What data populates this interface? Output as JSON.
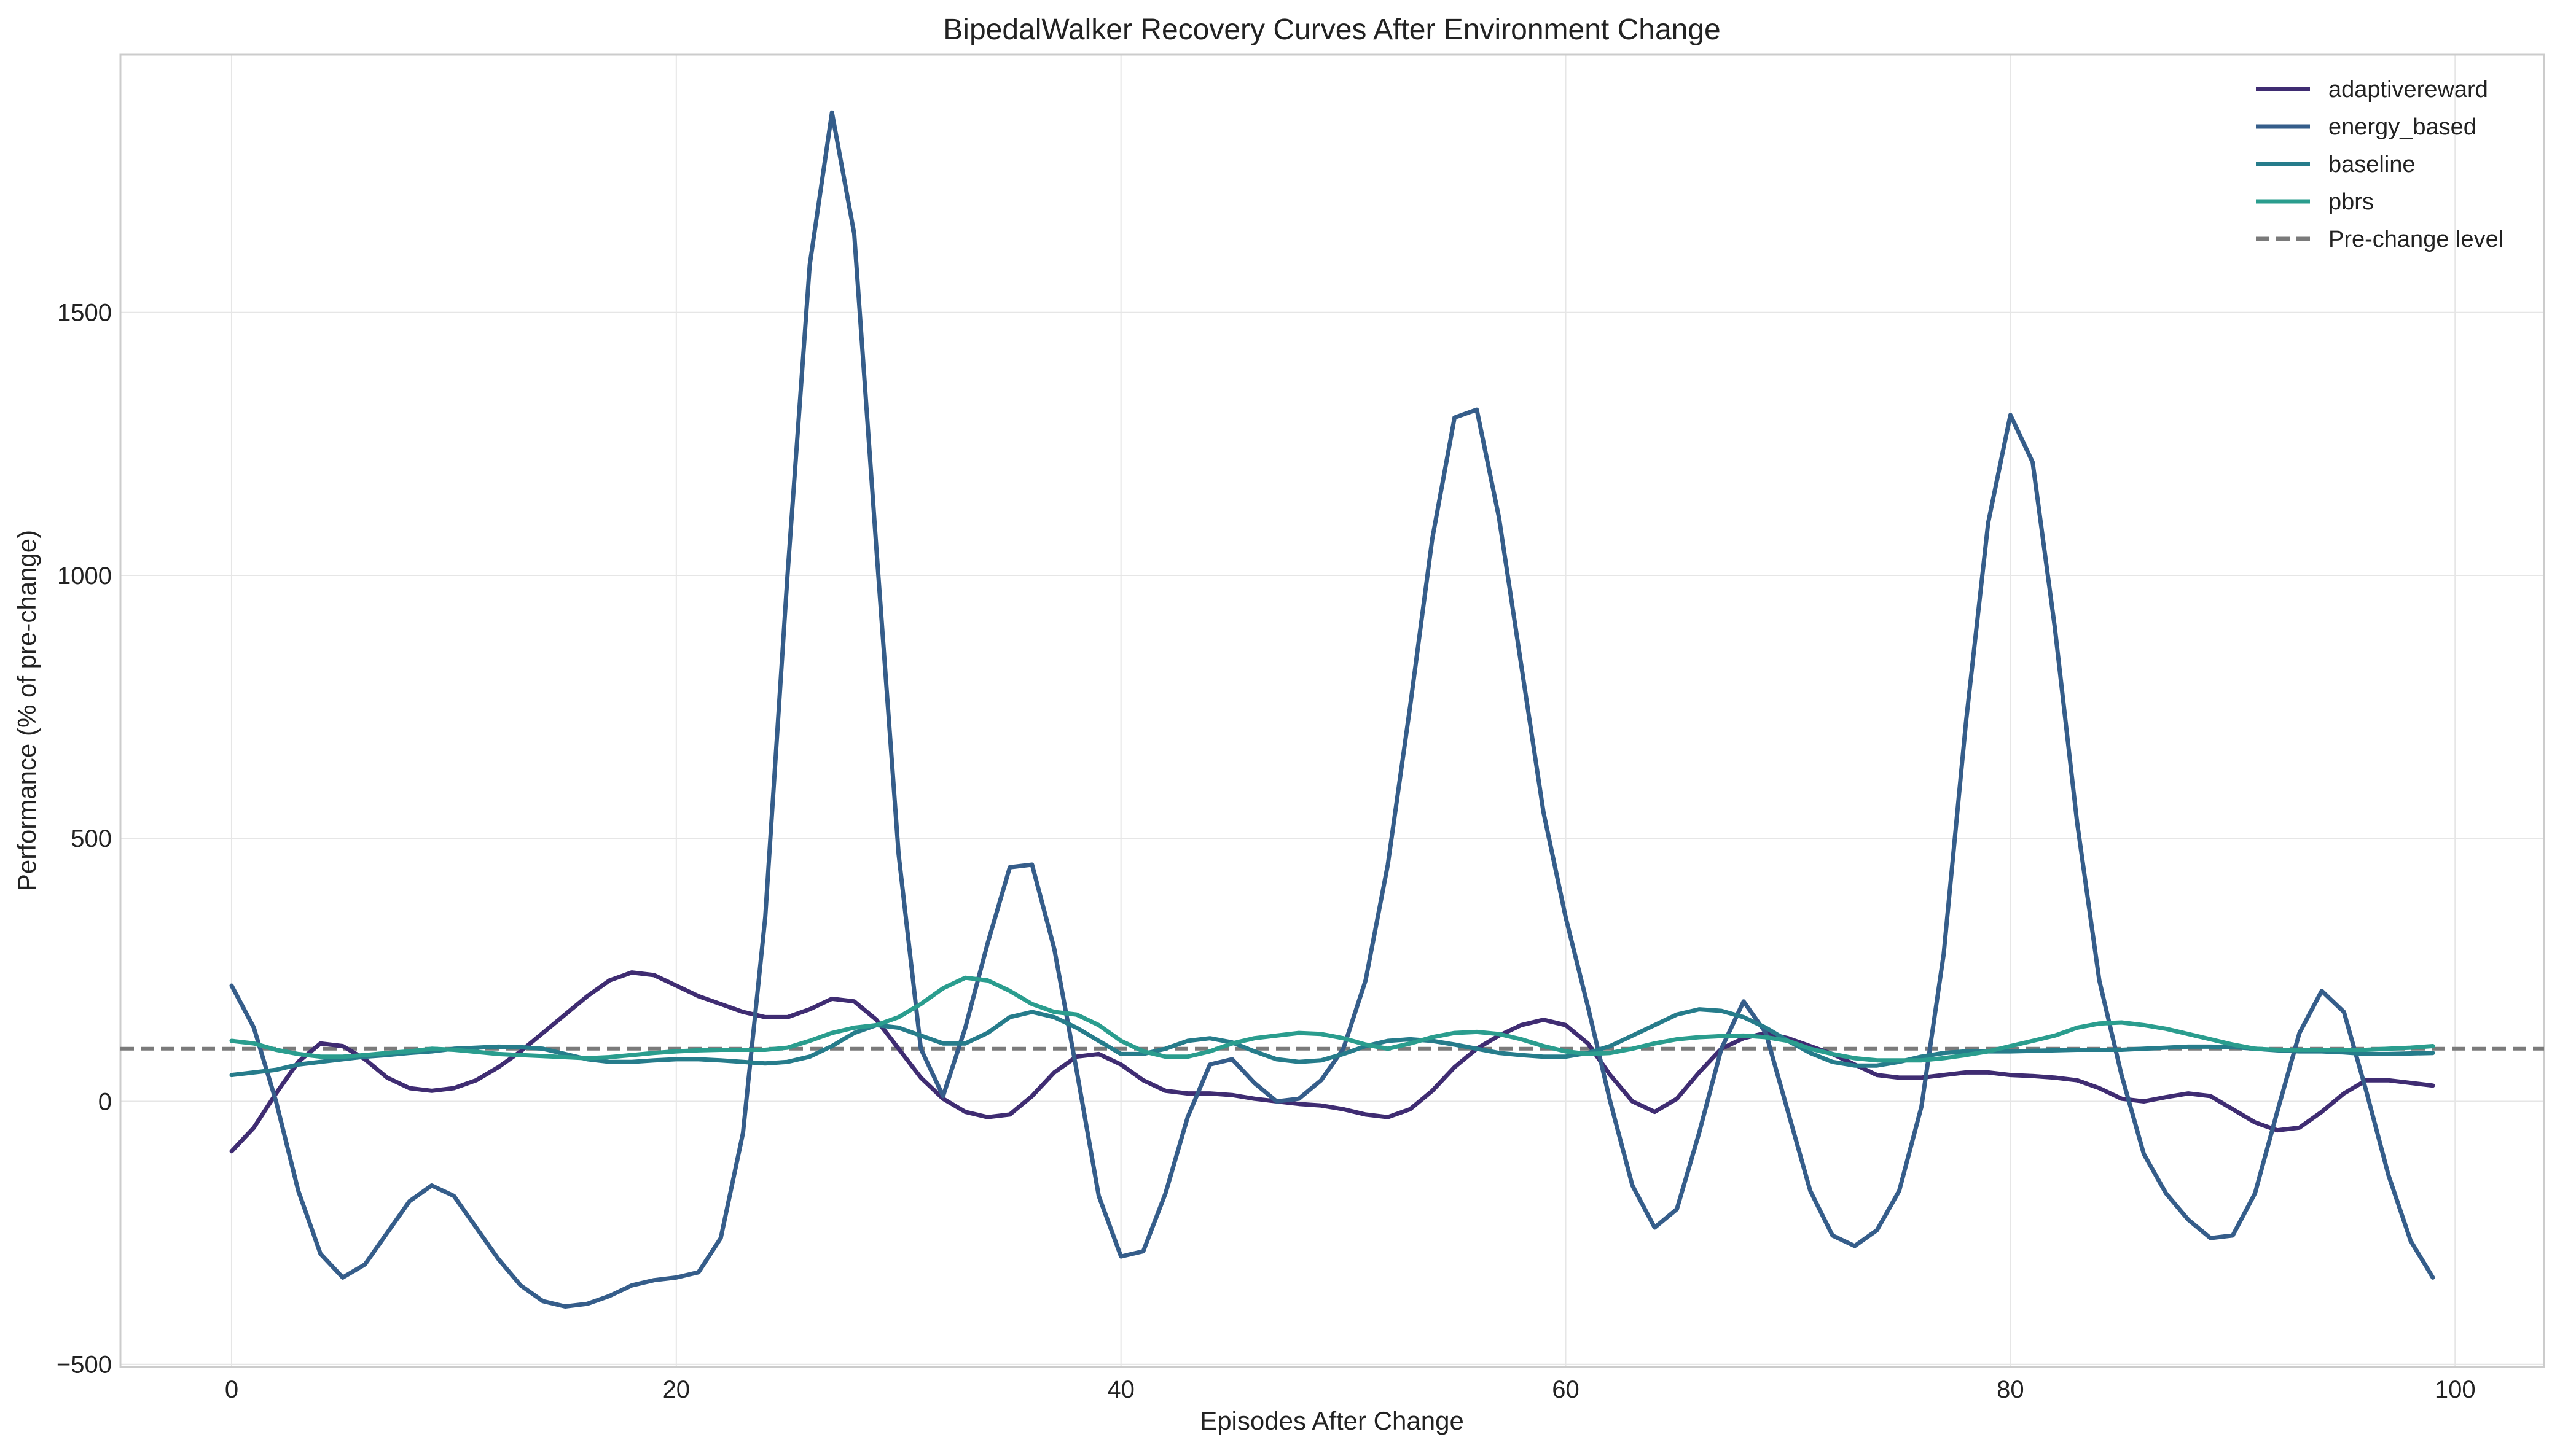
{
  "chart_data": {
    "type": "line",
    "title": "BipedalWalker Recovery Curves After Environment Change",
    "xlabel": "Episodes After Change",
    "ylabel": "Performance (% of pre-change)",
    "xlim": [
      -5,
      104
    ],
    "ylim": [
      -505,
      1990
    ],
    "xticks": [
      0,
      20,
      40,
      60,
      80,
      100
    ],
    "yticks": [
      -500,
      0,
      500,
      1000,
      1500
    ],
    "ytick_labels": [
      "−500",
      "0",
      "500",
      "1000",
      "1500"
    ],
    "grid": true,
    "legend_position": "top-right",
    "x": [
      0,
      1,
      2,
      3,
      4,
      5,
      6,
      7,
      8,
      9,
      10,
      11,
      12,
      13,
      14,
      15,
      16,
      17,
      18,
      19,
      20,
      21,
      22,
      23,
      24,
      25,
      26,
      27,
      28,
      29,
      30,
      31,
      32,
      33,
      34,
      35,
      36,
      37,
      38,
      39,
      40,
      41,
      42,
      43,
      44,
      45,
      46,
      47,
      48,
      49,
      50,
      51,
      52,
      53,
      54,
      55,
      56,
      57,
      58,
      59,
      60,
      61,
      62,
      63,
      64,
      65,
      66,
      67,
      68,
      69,
      70,
      71,
      72,
      73,
      74,
      75,
      76,
      77,
      78,
      79,
      80,
      81,
      82,
      83,
      84,
      85,
      86,
      87,
      88,
      89,
      90,
      91,
      92,
      93,
      94,
      95,
      96,
      97,
      98,
      99
    ],
    "series": [
      {
        "name": "adaptivereward",
        "color": "#3f2c72",
        "values": [
          -95,
          -50,
          15,
          75,
          110,
          105,
          80,
          45,
          25,
          20,
          25,
          40,
          65,
          95,
          130,
          165,
          200,
          230,
          245,
          240,
          220,
          200,
          185,
          170,
          160,
          160,
          175,
          195,
          190,
          155,
          100,
          45,
          5,
          -20,
          -30,
          -25,
          10,
          55,
          85,
          90,
          70,
          40,
          20,
          15,
          15,
          12,
          5,
          0,
          -5,
          -8,
          -15,
          -25,
          -30,
          -15,
          20,
          65,
          100,
          125,
          145,
          155,
          145,
          110,
          50,
          0,
          -20,
          5,
          55,
          100,
          120,
          130,
          120,
          105,
          90,
          70,
          50,
          45,
          45,
          50,
          55,
          55,
          50,
          48,
          45,
          40,
          25,
          5,
          0,
          8,
          15,
          10,
          -15,
          -40,
          -55,
          -50,
          -20,
          15,
          40,
          40,
          35,
          30
        ]
      },
      {
        "name": "energy_based",
        "color": "#355d8a",
        "values": [
          220,
          140,
          0,
          -170,
          -290,
          -335,
          -310,
          -250,
          -190,
          -160,
          -180,
          -240,
          -300,
          -350,
          -380,
          -390,
          -385,
          -370,
          -350,
          -340,
          -335,
          -325,
          -260,
          -60,
          350,
          1000,
          1590,
          1880,
          1650,
          1050,
          470,
          100,
          10,
          140,
          300,
          445,
          450,
          290,
          60,
          -180,
          -295,
          -285,
          -175,
          -30,
          70,
          80,
          35,
          0,
          5,
          40,
          100,
          230,
          450,
          750,
          1070,
          1300,
          1315,
          1110,
          830,
          550,
          350,
          180,
          0,
          -160,
          -240,
          -205,
          -60,
          100,
          190,
          130,
          -20,
          -170,
          -255,
          -275,
          -245,
          -170,
          -10,
          280,
          720,
          1100,
          1305,
          1215,
          900,
          530,
          230,
          50,
          -100,
          -175,
          -225,
          -260,
          -255,
          -175,
          -20,
          130,
          210,
          170,
          20,
          -140,
          -265,
          -335
        ]
      },
      {
        "name": "baseline",
        "color": "#267c8b",
        "values": [
          50,
          55,
          60,
          70,
          75,
          80,
          85,
          88,
          92,
          95,
          100,
          102,
          104,
          103,
          100,
          90,
          80,
          75,
          75,
          78,
          80,
          80,
          78,
          75,
          72,
          75,
          85,
          105,
          130,
          145,
          140,
          125,
          110,
          110,
          130,
          160,
          170,
          160,
          140,
          115,
          90,
          90,
          100,
          115,
          120,
          112,
          95,
          80,
          75,
          78,
          90,
          105,
          115,
          118,
          115,
          108,
          100,
          92,
          88,
          85,
          85,
          92,
          105,
          125,
          145,
          165,
          175,
          172,
          160,
          140,
          115,
          92,
          75,
          68,
          68,
          75,
          85,
          92,
          95,
          95,
          95,
          96,
          97,
          98,
          98,
          98,
          100,
          102,
          104,
          104,
          103,
          100,
          97,
          95,
          95,
          93,
          90,
          90,
          91,
          92
        ]
      },
      {
        "name": "pbrs",
        "color": "#2a9d8e",
        "values": [
          115,
          110,
          98,
          90,
          85,
          85,
          88,
          92,
          95,
          100,
          98,
          94,
          90,
          88,
          86,
          84,
          82,
          84,
          88,
          92,
          95,
          97,
          98,
          98,
          98,
          102,
          115,
          130,
          140,
          145,
          160,
          185,
          215,
          235,
          230,
          210,
          185,
          170,
          165,
          145,
          115,
          95,
          85,
          85,
          95,
          110,
          120,
          125,
          130,
          128,
          120,
          108,
          100,
          110,
          122,
          130,
          132,
          128,
          118,
          105,
          95,
          90,
          92,
          100,
          110,
          118,
          122,
          124,
          125,
          122,
          115,
          100,
          90,
          82,
          78,
          78,
          78,
          82,
          88,
          95,
          105,
          115,
          125,
          140,
          148,
          150,
          145,
          138,
          128,
          118,
          108,
          100,
          98,
          98,
          98,
          98,
          98,
          100,
          102,
          105
        ]
      }
    ],
    "reference_line": {
      "name": "Pre-change level",
      "y": 100,
      "color": "#7a7a7a",
      "style": "dashed"
    }
  }
}
